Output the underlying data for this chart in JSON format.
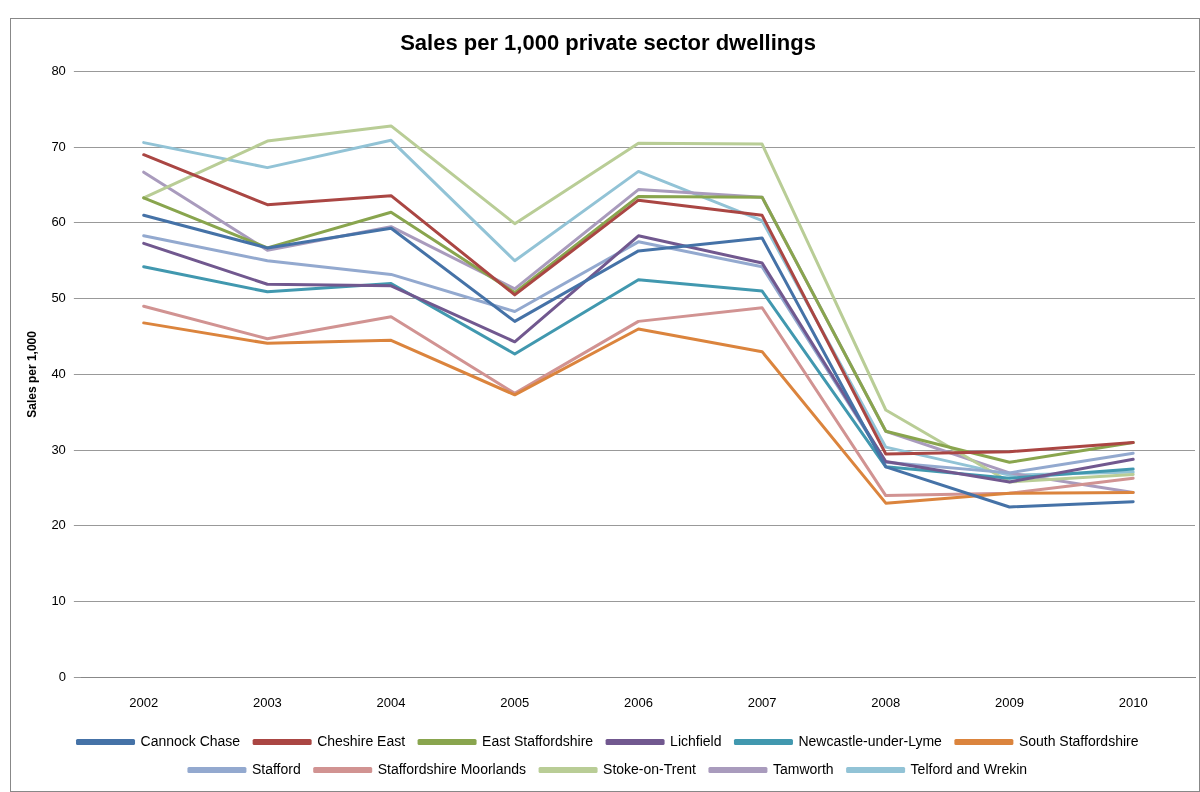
{
  "chart_data": {
    "type": "line",
    "title": "Sales per 1,000 private sector dwellings",
    "ylabel": "Sales per 1,000",
    "categories": [
      "2002",
      "2003",
      "2004",
      "2005",
      "2006",
      "2007",
      "2008",
      "2009",
      "2010"
    ],
    "ylim": [
      0,
      80
    ],
    "yticks": [
      0,
      10,
      20,
      30,
      40,
      50,
      60,
      70,
      80
    ],
    "grid": "y",
    "legend": "bottom",
    "marker": "none",
    "line_style": "solid",
    "series": [
      {
        "name": "Cannock Chase",
        "color": "#4572a7",
        "values": [
          61,
          56.7,
          59.3,
          47,
          56.3,
          58,
          27.8,
          22.5,
          23.2
        ]
      },
      {
        "name": "Cheshire East",
        "color": "#aa4643",
        "values": [
          69,
          62.4,
          63.6,
          50.5,
          63,
          61,
          29.5,
          29.8,
          31
        ]
      },
      {
        "name": "East Staffordshire",
        "color": "#89a54e",
        "values": [
          63.3,
          56.7,
          61.4,
          50.8,
          63.5,
          63.4,
          32.5,
          28.4,
          31
        ]
      },
      {
        "name": "Lichfield",
        "color": "#71588f",
        "values": [
          57.3,
          51.9,
          51.7,
          44.3,
          58.3,
          54.7,
          28.5,
          25.8,
          28.8
        ]
      },
      {
        "name": "Newcastle-under-Lyme",
        "color": "#4198af",
        "values": [
          54.2,
          50.9,
          52,
          42.7,
          52.5,
          51,
          27.8,
          26.3,
          27.5
        ]
      },
      {
        "name": "South Staffordshire",
        "color": "#db843d",
        "values": [
          46.8,
          44.1,
          44.5,
          37.3,
          46,
          43,
          23,
          24.3,
          24.4
        ]
      },
      {
        "name": "Stafford",
        "color": "#93a9cf",
        "values": [
          58.3,
          55,
          53.2,
          48.3,
          57.5,
          54.2,
          28.4,
          27,
          29.6
        ]
      },
      {
        "name": "Staffordshire Moorlands",
        "color": "#d19392",
        "values": [
          49,
          44.7,
          47.6,
          37.5,
          47,
          48.8,
          24,
          24.3,
          26.3
        ]
      },
      {
        "name": "Stoke-on-Trent",
        "color": "#b9cd96",
        "values": [
          63.3,
          70.8,
          72.8,
          59.9,
          70.5,
          70.4,
          35.3,
          25.8,
          26.8
        ]
      },
      {
        "name": "Tamworth",
        "color": "#a99bbd",
        "values": [
          66.7,
          56.4,
          59.5,
          51.3,
          64.4,
          63.4,
          32.5,
          27,
          24.4
        ]
      },
      {
        "name": "Telford and Wrekin",
        "color": "#92c3d6",
        "values": [
          70.6,
          67.3,
          70.9,
          55,
          66.8,
          60.3,
          30.4,
          26.7,
          27.1
        ]
      }
    ]
  }
}
